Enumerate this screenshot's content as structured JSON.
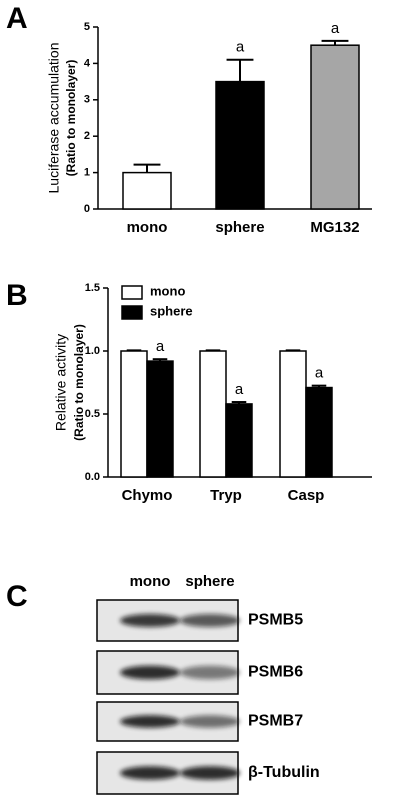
{
  "chart_data": [
    {
      "type": "bar",
      "panel_label": "A",
      "ylabel": [
        "Luciferase accumulation",
        "(Ratio to monolayer)"
      ],
      "categories": [
        "mono",
        "sphere",
        "MG132"
      ],
      "values": [
        1,
        3.5,
        4.5
      ],
      "errors": [
        0.22,
        0.6,
        0.12
      ],
      "colors": [
        "#ffffff",
        "#000000",
        "#a6a6a6"
      ],
      "value_annotations": [
        null,
        "a",
        "a"
      ],
      "ylim": [
        0,
        5
      ],
      "yticks": [
        0,
        1,
        2,
        3,
        4,
        5
      ]
    },
    {
      "type": "grouped_bar",
      "panel_label": "B",
      "ylabel": [
        "Relative activity",
        "(Ratio to monolayer)"
      ],
      "categories": [
        "Chymo",
        "Tryp",
        "Casp"
      ],
      "series": [
        {
          "name": "mono",
          "color": "#ffffff",
          "values": [
            1,
            1,
            1
          ],
          "errors": [
            0.005,
            0.005,
            0.005
          ],
          "annotations": [
            null,
            null,
            null
          ]
        },
        {
          "name": "sphere",
          "color": "#000000",
          "values": [
            0.92,
            0.58,
            0.71
          ],
          "errors": [
            0.015,
            0.015,
            0.015
          ],
          "annotations": [
            "a",
            "a",
            "a"
          ]
        }
      ],
      "ylim": [
        0,
        1.5
      ],
      "yticks": [
        {
          "value": 0,
          "label": "0.0"
        },
        {
          "value": 0.5,
          "label": "0.5"
        },
        {
          "value": 1,
          "label": "1.0"
        },
        {
          "value": 1.5,
          "label": "1.5"
        }
      ],
      "legend": "upper-left"
    },
    {
      "type": "blot",
      "panel_label": "C",
      "columns": [
        "mono",
        "sphere"
      ],
      "rows": [
        "PSMB5",
        "PSMB6",
        "PSMB7",
        "β-Tubulin"
      ]
    }
  ]
}
